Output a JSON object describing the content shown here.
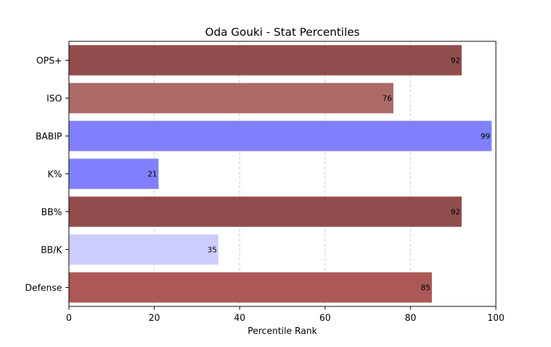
{
  "chart_data": {
    "type": "bar",
    "orientation": "horizontal",
    "title": "Oda Gouki - Stat Percentiles",
    "xlabel": "Percentile Rank",
    "ylabel": "",
    "xlim": [
      0,
      100
    ],
    "xticks": [
      0,
      20,
      40,
      60,
      80,
      100
    ],
    "grid": "x-dashed",
    "categories": [
      "OPS+",
      "ISO",
      "BABIP",
      "K%",
      "BB%",
      "BB/K",
      "Defense"
    ],
    "values": [
      92,
      76,
      99,
      21,
      92,
      35,
      85
    ],
    "bar_colors": [
      "#914d4d",
      "#ab6a68",
      "#8080ff",
      "#8080ff",
      "#914d4d",
      "#ccccff",
      "#ab5856"
    ],
    "data_labels": [
      "92",
      "76",
      "99",
      "21",
      "92",
      "35",
      "85"
    ]
  }
}
